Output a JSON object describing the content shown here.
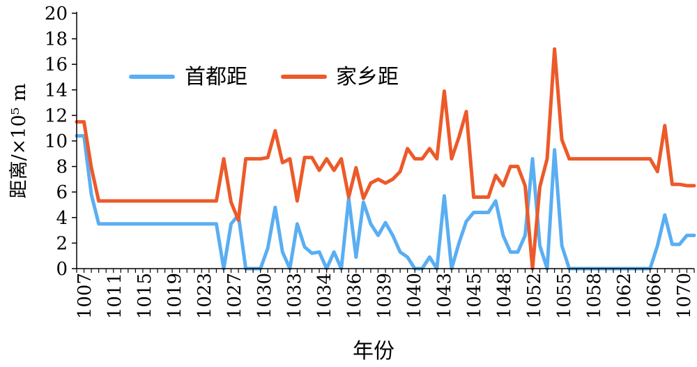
{
  "chart_data": {
    "type": "line",
    "xlabel": "年份",
    "ylabel": "距离/×10⁵ m",
    "ylim": [
      0,
      20
    ],
    "yticks": [
      0,
      2,
      4,
      6,
      8,
      10,
      12,
      14,
      16,
      18,
      20
    ],
    "xtick_labels": [
      "1007",
      "1011",
      "1015",
      "1019",
      "1023",
      "1027",
      "1030",
      "1033",
      "1034",
      "1036",
      "1039",
      "1040",
      "1043",
      "1045",
      "1048",
      "1052",
      "1055",
      "1058",
      "1062",
      "1066",
      "1070"
    ],
    "grid": false,
    "legend_position": "top-left",
    "colors": {
      "首都距": "#5aaef2",
      "家乡距": "#ec5a2a"
    },
    "series": [
      {
        "name": "首都距",
        "values": [
          10.4,
          10.4,
          5.8,
          3.5,
          3.5,
          3.5,
          3.5,
          3.5,
          3.5,
          3.5,
          3.5,
          3.5,
          3.5,
          3.5,
          3.5,
          3.5,
          3.5,
          3.5,
          3.5,
          3.5,
          0,
          3.5,
          4.2,
          0,
          0,
          0,
          1.6,
          4.8,
          1.3,
          0,
          3.5,
          1.7,
          1.2,
          1.3,
          0,
          1.3,
          0,
          5.5,
          0.9,
          5.2,
          3.5,
          2.6,
          3.6,
          2.6,
          1.3,
          0.9,
          0,
          0,
          0.9,
          0,
          5.7,
          0,
          2.0,
          3.7,
          4.4,
          4.4,
          4.4,
          5.3,
          2.6,
          1.3,
          1.3,
          2.6,
          8.6,
          1.8,
          0,
          9.3,
          1.8,
          0,
          0,
          0,
          0,
          0,
          0,
          0,
          0,
          0,
          0,
          0,
          0,
          1.8,
          4.2,
          1.9,
          1.9,
          2.6,
          2.6
        ]
      },
      {
        "name": "家乡距",
        "values": [
          11.5,
          11.5,
          7.9,
          5.3,
          5.3,
          5.3,
          5.3,
          5.3,
          5.3,
          5.3,
          5.3,
          5.3,
          5.3,
          5.3,
          5.3,
          5.3,
          5.3,
          5.3,
          5.3,
          5.3,
          8.6,
          5.2,
          3.8,
          8.6,
          8.6,
          8.6,
          8.7,
          10.8,
          8.3,
          8.6,
          5.3,
          8.7,
          8.7,
          7.7,
          8.6,
          7.7,
          8.6,
          5.6,
          7.9,
          5.5,
          6.7,
          7.0,
          6.7,
          7.0,
          7.6,
          9.4,
          8.6,
          8.6,
          9.4,
          8.6,
          13.9,
          8.6,
          10.3,
          12.3,
          5.6,
          5.6,
          5.6,
          7.3,
          6.5,
          8.0,
          8.0,
          6.5,
          0,
          6.4,
          8.6,
          17.2,
          10.1,
          8.6,
          8.6,
          8.6,
          8.6,
          8.6,
          8.6,
          8.6,
          8.6,
          8.6,
          8.6,
          8.6,
          8.6,
          7.6,
          11.2,
          6.6,
          6.6,
          6.5,
          6.5
        ]
      }
    ]
  }
}
